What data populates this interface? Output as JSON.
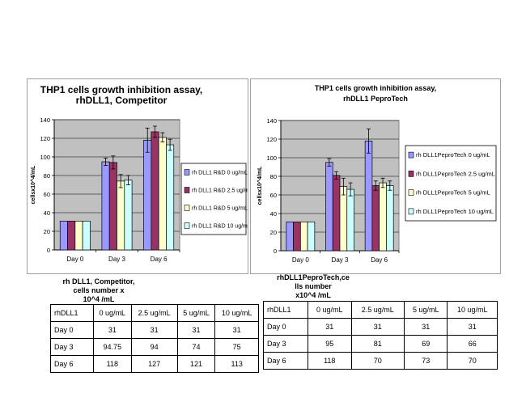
{
  "chart_data": [
    {
      "type": "bar",
      "title_lines": [
        "THP1 cells growth inhibition assay,",
        "rhDLL1, Competitor"
      ],
      "ylabel": "cellsx10^4/mL",
      "xlabel": "",
      "categories": [
        "Day 0",
        "Day 3",
        "Day 6"
      ],
      "ylim": [
        0,
        140
      ],
      "yticks": [
        0,
        20,
        40,
        60,
        80,
        100,
        120,
        140
      ],
      "grid": true,
      "legend_position": "right",
      "series": [
        {
          "name": "rh DLL1 R&D 0 ug/mL",
          "color": "#9999ff",
          "values": [
            31,
            94.75,
            118
          ],
          "errors": [
            0,
            4,
            13
          ]
        },
        {
          "name": "rh DLL1 R&D 2.5 ug/mL",
          "color": "#993366",
          "values": [
            31,
            94,
            127
          ],
          "errors": [
            0,
            7,
            6
          ]
        },
        {
          "name": "rh DLL1 R&D 5 ug/mL",
          "color": "#ffffcc",
          "values": [
            31,
            74,
            121
          ],
          "errors": [
            0,
            7,
            5
          ]
        },
        {
          "name": "rh DLL1 R&D 10 ug/mL",
          "color": "#ccffff",
          "values": [
            31,
            75,
            113
          ],
          "errors": [
            0,
            5,
            6
          ]
        }
      ]
    },
    {
      "type": "bar",
      "title_lines": [
        "THP1 cells growth inhibition assay,",
        "rhDLL1 PeproTech"
      ],
      "ylabel": "cellsx10^4/mL",
      "xlabel": "",
      "categories": [
        "Day 0",
        "Day 3",
        "Day 6"
      ],
      "ylim": [
        0,
        140
      ],
      "yticks": [
        0,
        20,
        40,
        60,
        80,
        100,
        120,
        140
      ],
      "grid": true,
      "legend_position": "right",
      "series": [
        {
          "name": "rh DLL1PeproTech 0 ug/mL",
          "color": "#9999ff",
          "values": [
            31,
            95,
            118
          ],
          "errors": [
            0,
            4,
            13
          ]
        },
        {
          "name": "rh DLL1PeproTech 2.5 ug/mL",
          "color": "#993366",
          "values": [
            31,
            81,
            70
          ],
          "errors": [
            0,
            4,
            5
          ]
        },
        {
          "name": "rh DLL1PeproTech 5 ug/mL",
          "color": "#ffffcc",
          "values": [
            31,
            69,
            73
          ],
          "errors": [
            0,
            9,
            5
          ]
        },
        {
          "name": "rh DLL1PeproTech 10 ug/mL",
          "color": "#ccffff",
          "values": [
            31,
            66,
            70
          ],
          "errors": [
            0,
            7,
            5
          ]
        }
      ]
    }
  ],
  "tables": [
    {
      "caption_lines": [
        "rh DLL1, Competitor,",
        "cells number x",
        "10^4 /mL"
      ],
      "header": [
        "rhDLL1",
        "0 ug/mL",
        "2.5 ug/mL",
        "5 ug/mL",
        "10 ug/mL"
      ],
      "rows": [
        [
          "Day 0",
          "31",
          "31",
          "31",
          "31"
        ],
        [
          "Day 3",
          "94.75",
          "94",
          "74",
          "75"
        ],
        [
          "Day 6",
          "118",
          "127",
          "121",
          "113"
        ]
      ]
    },
    {
      "caption_lines": [
        "rhDLL1PeproTech,ce",
        "lls number",
        "x10^4 /mL"
      ],
      "header": [
        "rhDLL1",
        "0 ug/mL",
        "2.5 ug/mL",
        "5 ug/mL",
        "10 ug/mL"
      ],
      "rows": [
        [
          "Day 0",
          "31",
          "31",
          "31",
          "31"
        ],
        [
          "Day 3",
          "95",
          "81",
          "69",
          "66"
        ],
        [
          "Day 6",
          "118",
          "70",
          "73",
          "70"
        ]
      ]
    }
  ]
}
